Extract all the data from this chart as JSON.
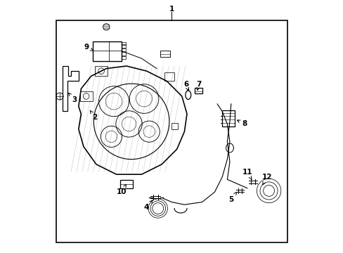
{
  "background_color": "#ffffff",
  "border_color": "#000000",
  "line_color": "#000000",
  "text_color": "#000000",
  "figsize": [
    4.89,
    3.6
  ],
  "dpi": 100
}
